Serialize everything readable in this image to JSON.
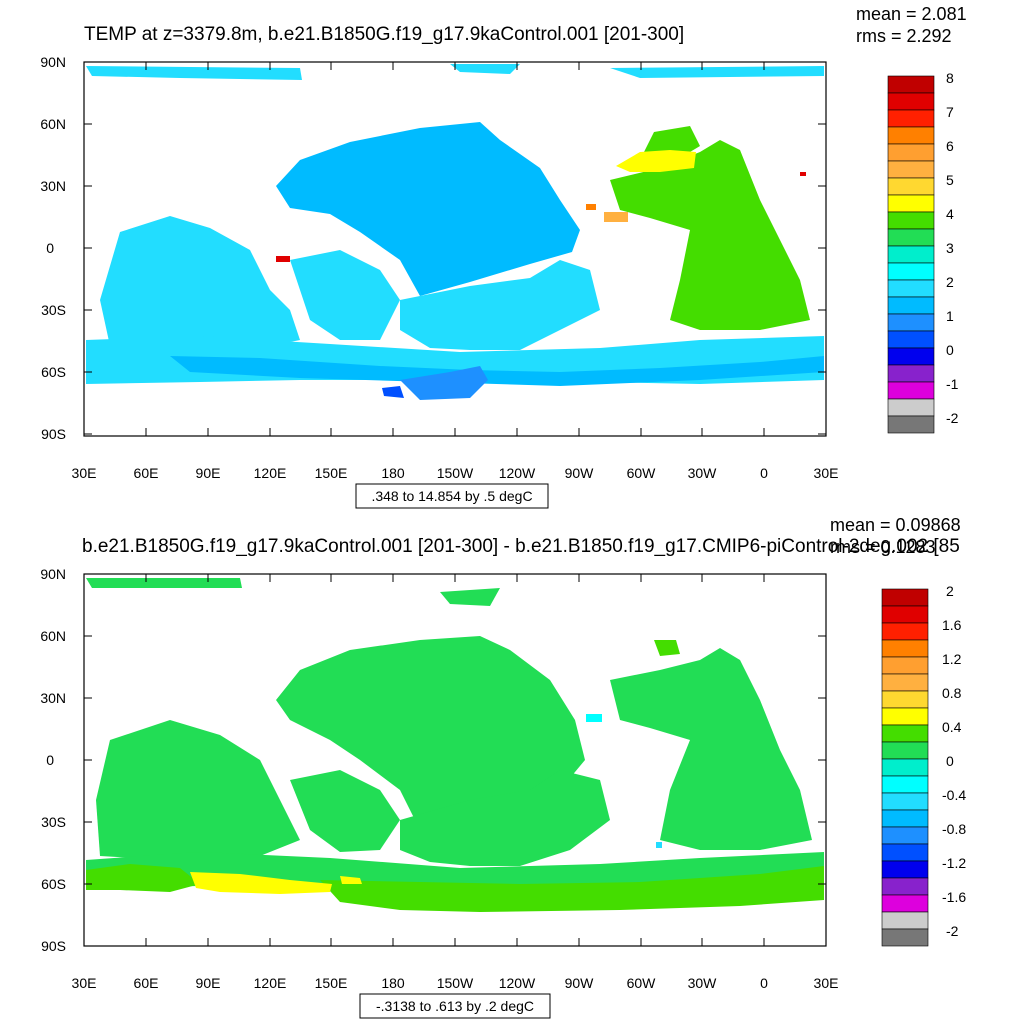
{
  "panels": [
    {
      "title": "TEMP at z=3379.8m, b.e21.B1850G.f19_g17.9kaControl.001 [201-300]",
      "mean_text": "mean = 2.081",
      "rms_text": "rms = 2.292",
      "range_text": ".348 to 14.854 by .5 degC",
      "lat_labels": [
        "90N",
        "60N",
        "30N",
        "0",
        "30S",
        "60S",
        "90S"
      ],
      "lon_labels": [
        "30E",
        "60E",
        "90E",
        "120E",
        "150E",
        "180",
        "150W",
        "120W",
        "90W",
        "60W",
        "30W",
        "0",
        "30E"
      ],
      "colorbar_labels": [
        "8",
        "7",
        "6",
        "5",
        "4",
        "3",
        "2",
        "1",
        "0",
        "-1",
        "-2"
      ],
      "colorbar_colors": [
        "#c00000",
        "#e00000",
        "#ff2000",
        "#ff8000",
        "#ff9f30",
        "#ffb040",
        "#ffd830",
        "#ffff00",
        "#44dd00",
        "#22dd55",
        "#00eecc",
        "#00ffff",
        "#22ddff",
        "#00bbff",
        "#1e90ff",
        "#0050ff",
        "#0000ee",
        "#8822cc",
        "#dd00dd",
        "#cccccc",
        "#777777"
      ]
    },
    {
      "title": "b.e21.B1850G.f19_g17.9kaControl.001 [201-300] - b.e21.B1850.f19_g17.CMIP6-piControl-2deg.002 [85",
      "mean_text": "mean = 0.09868",
      "rms_text": "rms = 0.1283",
      "range_text": "-.3138 to .613 by .2 degC",
      "lat_labels": [
        "90N",
        "60N",
        "30N",
        "0",
        "30S",
        "60S",
        "90S"
      ],
      "lon_labels": [
        "30E",
        "60E",
        "90E",
        "120E",
        "150E",
        "180",
        "150W",
        "120W",
        "90W",
        "60W",
        "30W",
        "0",
        "30E"
      ],
      "colorbar_labels": [
        "2",
        "1.6",
        "1.2",
        "0.8",
        "0.4",
        "0",
        "-0.4",
        "-0.8",
        "-1.2",
        "-1.6",
        "-2"
      ],
      "colorbar_colors": [
        "#c00000",
        "#e00000",
        "#ff2000",
        "#ff8000",
        "#ff9f30",
        "#ffb040",
        "#ffd830",
        "#ffff00",
        "#44dd00",
        "#22dd55",
        "#00eecc",
        "#00ffff",
        "#22ddff",
        "#00bbff",
        "#1e90ff",
        "#0050ff",
        "#0000ee",
        "#8822cc",
        "#dd00dd",
        "#cccccc",
        "#777777"
      ]
    }
  ],
  "colors": {
    "light_cyan": "#22ddff",
    "mid_blue": "#00bbff",
    "deep_blue": "#1e90ff",
    "green": "#44dd00",
    "green2": "#22dd55",
    "yellow": "#ffff00",
    "orange": "#ffb040",
    "red": "#e00000"
  }
}
